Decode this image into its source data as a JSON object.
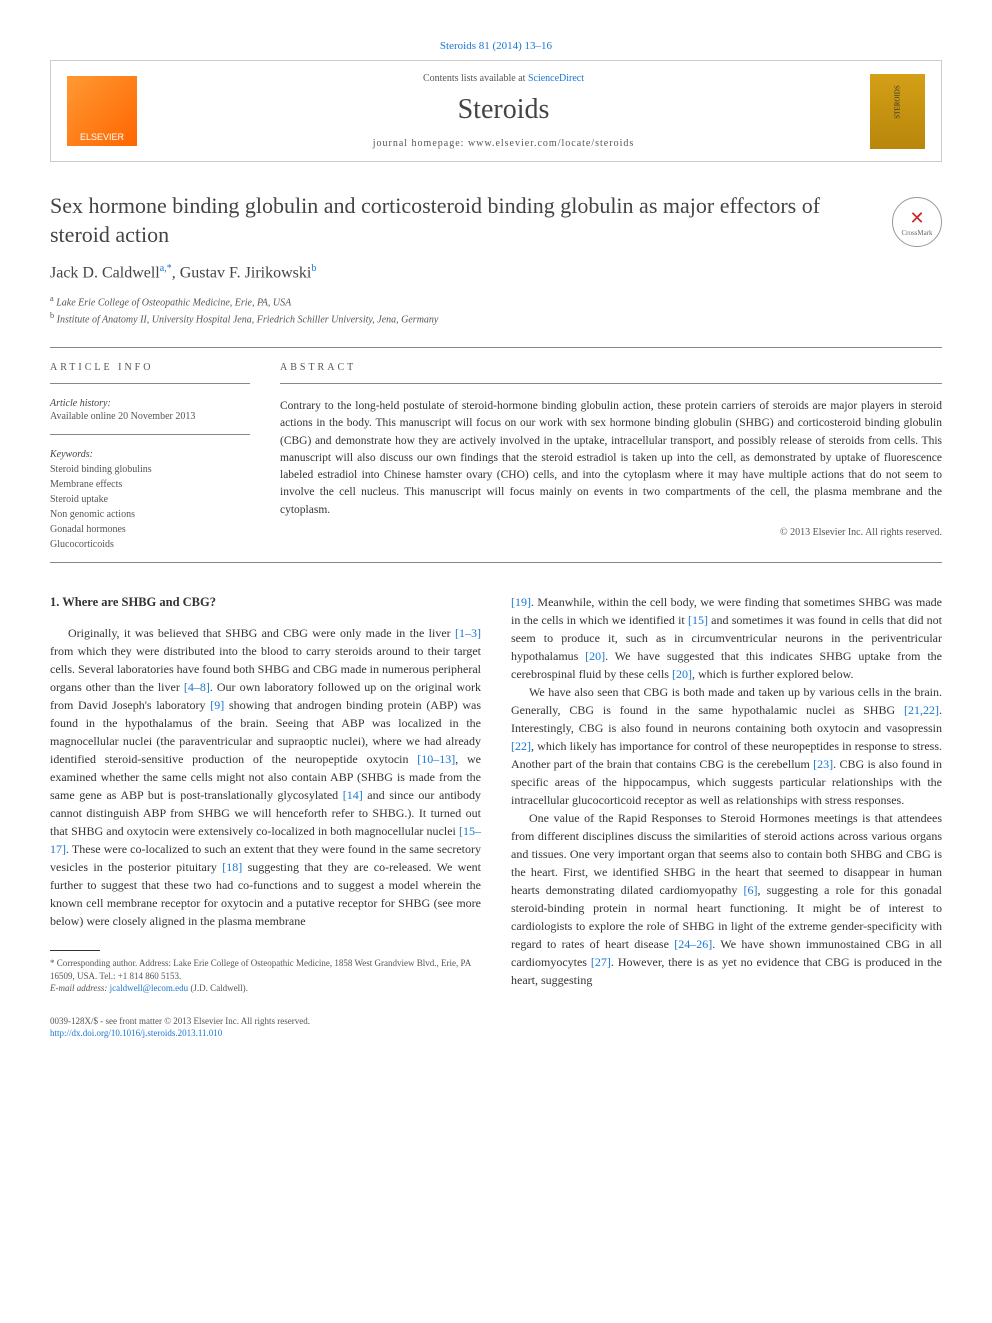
{
  "citation": "Steroids 81 (2014) 13–16",
  "header": {
    "publisher_logo": "ELSEVIER",
    "contents_text": "Contents lists available at ",
    "contents_link": "ScienceDirect",
    "journal_name": "Steroids",
    "homepage_label": "journal homepage: ",
    "homepage_url": "www.elsevier.com/locate/steroids",
    "cover_label": "STEROIDS"
  },
  "crossmark": {
    "icon": "✕",
    "label": "CrossMark"
  },
  "title": "Sex hormone binding globulin and corticosteroid binding globulin as major effectors of steroid action",
  "authors_html": "Jack D. Caldwell",
  "author1_sup": "a,*",
  "author2": ", Gustav F. Jirikowski",
  "author2_sup": "b",
  "affiliations": {
    "a": "Lake Erie College of Osteopathic Medicine, Erie, PA, USA",
    "b": "Institute of Anatomy II, University Hospital Jena, Friedrich Schiller University, Jena, Germany"
  },
  "article_info": {
    "heading": "ARTICLE INFO",
    "history_label": "Article history:",
    "history_text": "Available online 20 November 2013",
    "keywords_label": "Keywords:",
    "keywords": [
      "Steroid binding globulins",
      "Membrane effects",
      "Steroid uptake",
      "Non genomic actions",
      "Gonadal hormones",
      "Glucocorticoids"
    ]
  },
  "abstract": {
    "heading": "ABSTRACT",
    "text": "Contrary to the long-held postulate of steroid-hormone binding globulin action, these protein carriers of steroids are major players in steroid actions in the body. This manuscript will focus on our work with sex hormone binding globulin (SHBG) and corticosteroid binding globulin (CBG) and demonstrate how they are actively involved in the uptake, intracellular transport, and possibly release of steroids from cells. This manuscript will also discuss our own findings that the steroid estradiol is taken up into the cell, as demonstrated by uptake of fluorescence labeled estradiol into Chinese hamster ovary (CHO) cells, and into the cytoplasm where it may have multiple actions that do not seem to involve the cell nucleus. This manuscript will focus mainly on events in two compartments of the cell, the plasma membrane and the cytoplasm.",
    "copyright": "© 2013 Elsevier Inc. All rights reserved."
  },
  "section1": {
    "heading": "1. Where are SHBG and CBG?",
    "col1_p1a": "Originally, it was believed that SHBG and CBG were only made in the liver ",
    "col1_ref1": "[1–3]",
    "col1_p1b": " from which they were distributed into the blood to carry steroids around to their target cells. Several laboratories have found both SHBG and CBG made in numerous peripheral organs other than the liver ",
    "col1_ref2": "[4–8]",
    "col1_p1c": ". Our own laboratory followed up on the original work from David Joseph's laboratory ",
    "col1_ref3": "[9]",
    "col1_p1d": " showing that androgen binding protein (ABP) was found in the hypothalamus of the brain. Seeing that ABP was localized in the magnocellular nuclei (the paraventricular and supraoptic nuclei), where we had already identified steroid-sensitive production of the neuropeptide oxytocin ",
    "col1_ref4": "[10–13]",
    "col1_p1e": ", we examined whether the same cells might not also contain ABP (SHBG is made from the same gene as ABP but is post-translationally glycosylated ",
    "col1_ref5": "[14]",
    "col1_p1f": " and since our antibody cannot distinguish ABP from SHBG we will henceforth refer to SHBG.). It turned out that SHBG and oxytocin were extensively co-localized in both magnocellular nuclei ",
    "col1_ref6": "[15–17]",
    "col1_p1g": ". These were co-localized to such an extent that they were found in the same secretory vesicles in the posterior pituitary ",
    "col1_ref7": "[18]",
    "col1_p1h": " suggesting that they are co-released. We went further to suggest that these two had co-functions and to suggest a model wherein the known cell membrane receptor for oxytocin and a putative receptor for SHBG (see more below) were closely aligned in the plasma membrane",
    "col2_ref1": "[19]",
    "col2_p1a": ". Meanwhile, within the cell body, we were finding that sometimes SHBG was made in the cells in which we identified it ",
    "col2_ref2": "[15]",
    "col2_p1b": " and sometimes it was found in cells that did not seem to produce it, such as in circumventricular neurons in the periventricular hypothalamus ",
    "col2_ref3": "[20]",
    "col2_p1c": ". We have suggested that this indicates SHBG uptake from the cerebrospinal fluid by these cells ",
    "col2_ref4": "[20]",
    "col2_p1d": ", which is further explored below.",
    "col2_p2a": "We have also seen that CBG is both made and taken up by various cells in the brain. Generally, CBG is found in the same hypothalamic nuclei as SHBG ",
    "col2_ref5": "[21,22]",
    "col2_p2b": ". Interestingly, CBG is also found in neurons containing both oxytocin and vasopressin ",
    "col2_ref6": "[22]",
    "col2_p2c": ", which likely has importance for control of these neuropeptides in response to stress. Another part of the brain that contains CBG is the cerebellum ",
    "col2_ref7": "[23]",
    "col2_p2d": ". CBG is also found in specific areas of the hippocampus, which suggests particular relationships with the intracellular glucocorticoid receptor as well as relationships with stress responses.",
    "col2_p3a": "One value of the Rapid Responses to Steroid Hormones meetings is that attendees from different disciplines discuss the similarities of steroid actions across various organs and tissues. One very important organ that seems also to contain both SHBG and CBG is the heart. First, we identified SHBG in the heart that seemed to disappear in human hearts demonstrating dilated cardiomyopathy ",
    "col2_ref8": "[6]",
    "col2_p3b": ", suggesting a role for this gonadal steroid-binding protein in normal heart functioning. It might be of interest to cardiologists to explore the role of SHBG in light of the extreme gender-specificity with regard to rates of heart disease ",
    "col2_ref9": "[24–26]",
    "col2_p3c": ". We have shown immunostained CBG in all cardiomyocytes ",
    "col2_ref10": "[27]",
    "col2_p3d": ". However, there is as yet no evidence that CBG is produced in the heart, suggesting"
  },
  "footnote": {
    "corresponding": "* Corresponding author. Address: Lake Erie College of Osteopathic Medicine, 1858 West Grandview Blvd., Erie, PA 16509, USA. Tel.: +1 814 860 5153.",
    "email_label": "E-mail address: ",
    "email": "jcaldwell@lecom.edu",
    "email_suffix": " (J.D. Caldwell)."
  },
  "footer": {
    "line1": "0039-128X/$ - see front matter © 2013 Elsevier Inc. All rights reserved.",
    "doi": "http://dx.doi.org/10.1016/j.steroids.2013.11.010"
  }
}
